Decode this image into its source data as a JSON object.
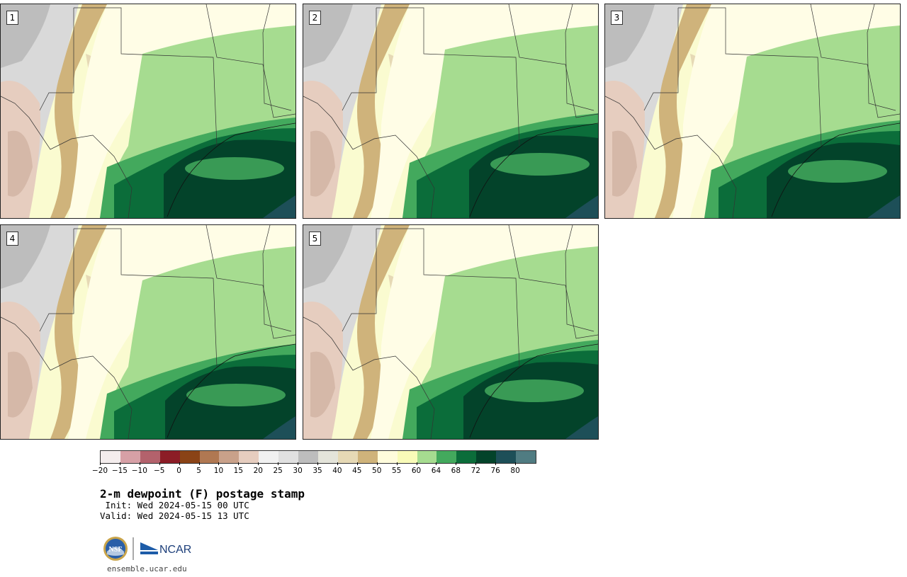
{
  "panels": [
    {
      "label": "1"
    },
    {
      "label": "2"
    },
    {
      "label": "3"
    },
    {
      "label": "4"
    },
    {
      "label": "5"
    }
  ],
  "colorbar": {
    "colors": [
      "#f4eded",
      "#d7a0a6",
      "#b3626c",
      "#8c1d26",
      "#8a4316",
      "#b07852",
      "#c9a18a",
      "#e6cdbf",
      "#f1f1f1",
      "#e0e0e0",
      "#bdbdbd",
      "#e4e4da",
      "#e6d9b5",
      "#cfb37b",
      "#fffcdc",
      "#f9fbb8",
      "#a6dc90",
      "#43a95d",
      "#0b6d3a",
      "#03432a",
      "#1d4f58",
      "#507c82"
    ],
    "tick_labels": [
      "−20",
      "−15",
      "−10",
      "−5",
      "0",
      "5",
      "10",
      "15",
      "20",
      "25",
      "30",
      "35",
      "40",
      "45",
      "50",
      "55",
      "60",
      "64",
      "68",
      "72",
      "76",
      "80"
    ]
  },
  "title": "2-m dewpoint (F) postage stamp",
  "init": " Init: Wed 2024-05-15 00 UTC",
  "valid": "Valid: Wed 2024-05-15 13 UTC",
  "logos": {
    "nsf": "NSF",
    "ncar": "NCAR"
  },
  "url": "ensemble.ucar.edu"
}
